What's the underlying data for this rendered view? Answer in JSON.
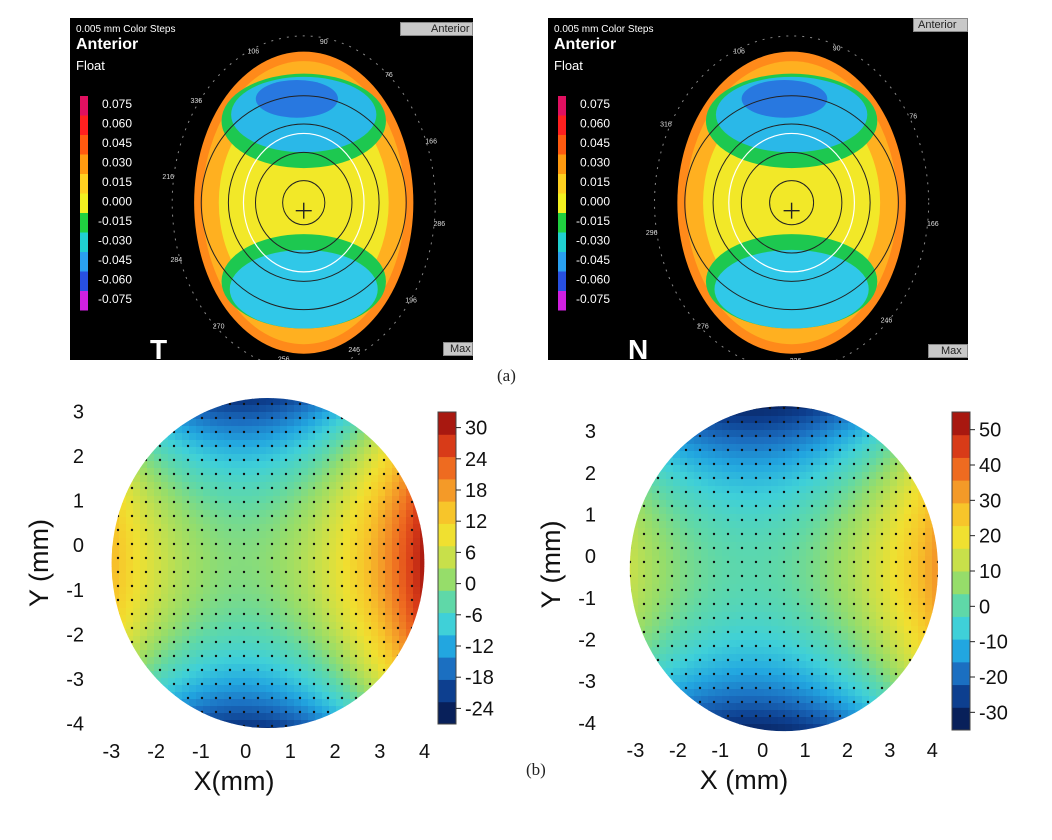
{
  "captions": {
    "a": "(a)",
    "b": "(b)"
  },
  "topography": [
    {
      "color_steps": "0.005 mm Color Steps",
      "surface": "Anterior",
      "mode": "Float",
      "button_top": "Anterior",
      "button_bottom": "Max",
      "corner_letter": "T",
      "scale_values": [
        "0.075",
        "0.060",
        "0.045",
        "0.030",
        "0.015",
        "0.000",
        "-0.015",
        "-0.030",
        "-0.045",
        "-0.060",
        "-0.075"
      ],
      "scale_colors": [
        "#e01060",
        "#ff2020",
        "#ff5a10",
        "#ff9a10",
        "#ffd020",
        "#f2f020",
        "#20d040",
        "#20d0d0",
        "#2aa0f0",
        "#2850e0",
        "#d020e0"
      ],
      "angle_labels": [
        "106",
        "90",
        "76",
        "166",
        "286",
        "196",
        "246",
        "256",
        "270",
        "284",
        "216",
        "336"
      ]
    },
    {
      "color_steps": "0.005 mm Color Steps",
      "surface": "Anterior",
      "mode": "Float",
      "button_top": "Anterior",
      "button_bottom": "Max",
      "corner_letter": "N",
      "scale_values": [
        "0.075",
        "0.060",
        "0.045",
        "0.030",
        "0.015",
        "0.000",
        "-0.015",
        "-0.030",
        "-0.045",
        "-0.060",
        "-0.075"
      ],
      "scale_colors": [
        "#e01060",
        "#ff2020",
        "#ff5a10",
        "#ff9a10",
        "#ffd020",
        "#f2f020",
        "#20d040",
        "#20d0d0",
        "#2aa0f0",
        "#2850e0",
        "#d020e0"
      ],
      "angle_labels": [
        "106",
        "90",
        "76",
        "166",
        "246",
        "226",
        "276",
        "296",
        "316"
      ]
    }
  ],
  "chart_data": [
    {
      "type": "heatmap",
      "xlabel": "X(mm)",
      "ylabel": "Y (mm)",
      "x_ticks": [
        "-3",
        "-2",
        "-1",
        "0",
        "1",
        "2",
        "3",
        "4"
      ],
      "y_ticks": [
        "3",
        "2",
        "1",
        "0",
        "-1",
        "-2",
        "-3",
        "-4"
      ],
      "xlim": [
        -3.3,
        4.3
      ],
      "ylim": [
        -4.1,
        3.3
      ],
      "colorbar_ticks": [
        "30",
        "24",
        "18",
        "12",
        "6",
        "0",
        "-6",
        "-12",
        "-18",
        "-24"
      ],
      "colorbar_range": [
        -27,
        33
      ],
      "colorbar_colors": [
        "#08205a",
        "#0d3f8f",
        "#1b6fc1",
        "#22a6e0",
        "#3fd0d8",
        "#5fd8a8",
        "#96dd6a",
        "#c8e04a",
        "#f0e030",
        "#f7c52a",
        "#f49a28",
        "#ee6b20",
        "#d83b18",
        "#a81810"
      ],
      "surface": {
        "vertical_amp": -24,
        "horizontal_amp": 28,
        "tilt": 4,
        "center": [
          0.5,
          -0.4
        ]
      }
    },
    {
      "type": "heatmap",
      "xlabel": "X (mm)",
      "ylabel": "Y (mm)",
      "x_ticks": [
        "-3",
        "-2",
        "-1",
        "0",
        "1",
        "2",
        "3",
        "4"
      ],
      "y_ticks": [
        "3",
        "2",
        "1",
        "0",
        "-1",
        "-2",
        "-3",
        "-4"
      ],
      "xlim": [
        -3.6,
        4.3
      ],
      "ylim": [
        -4.1,
        3.7
      ],
      "colorbar_ticks": [
        "50",
        "40",
        "30",
        "20",
        "10",
        "0",
        "-10",
        "-20",
        "-30"
      ],
      "colorbar_range": [
        -35,
        55
      ],
      "colorbar_colors": [
        "#08205a",
        "#0d3f8f",
        "#1b6fc1",
        "#22a6e0",
        "#3fd0d8",
        "#5fd8a8",
        "#96dd6a",
        "#c8e04a",
        "#f0e030",
        "#f7c52a",
        "#f49a28",
        "#ee6b20",
        "#d83b18",
        "#a81810"
      ],
      "surface": {
        "vertical_amp": -30,
        "horizontal_amp": 26,
        "tilt": 5,
        "center": [
          0.5,
          -0.3
        ]
      }
    }
  ]
}
